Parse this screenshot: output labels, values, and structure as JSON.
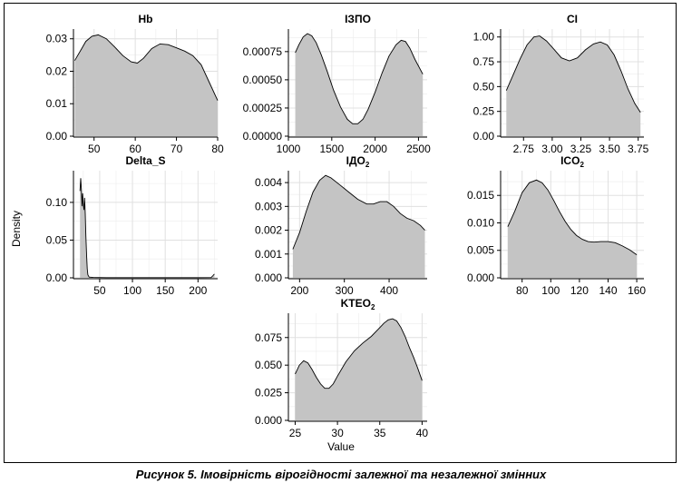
{
  "caption": "Рисунок 5.  Імовірність вірогідності залежної та незалежної змінних",
  "axis_labels": {
    "y": "Density",
    "x": "Value"
  },
  "colors": {
    "fill": "#c4c4c4",
    "grid": "#e0e0e0",
    "line": "#000000"
  },
  "chart_data": [
    {
      "type": "area",
      "title": "Hb",
      "title_sub": "",
      "xlim": [
        45,
        80
      ],
      "ylim": [
        0,
        0.033
      ],
      "xticks": [
        50,
        60,
        70,
        80
      ],
      "xtick_labels": [
        "50",
        "60",
        "70",
        "80"
      ],
      "yticks": [
        0,
        0.01,
        0.02,
        0.03
      ],
      "ytick_labels": [
        "0.00",
        "0.01",
        "0.02",
        "0.03"
      ],
      "xminor": [
        45,
        55,
        65,
        75
      ],
      "yminor": [
        0.005,
        0.015,
        0.025
      ],
      "x": [
        45.3,
        47,
        48,
        49.5,
        51,
        53,
        55,
        57,
        59,
        60.5,
        62,
        64,
        66,
        68,
        70,
        72,
        74,
        76,
        78,
        80
      ],
      "y": [
        0.0233,
        0.027,
        0.0292,
        0.0308,
        0.0312,
        0.03,
        0.0275,
        0.0248,
        0.0229,
        0.0225,
        0.024,
        0.027,
        0.0284,
        0.0282,
        0.0272,
        0.0262,
        0.0248,
        0.022,
        0.0165,
        0.011
      ]
    },
    {
      "type": "area",
      "title": "IЗПО",
      "title_sub": "",
      "xlim": [
        1000,
        2600
      ],
      "ylim": [
        0,
        0.00095
      ],
      "xticks": [
        1000,
        1500,
        2000,
        2500
      ],
      "xtick_labels": [
        "1000",
        "1500",
        "2000",
        "2500"
      ],
      "yticks": [
        0,
        0.00025,
        0.0005,
        0.00075
      ],
      "ytick_labels": [
        "0.00000",
        "0.00025",
        "0.00050",
        "0.00075"
      ],
      "xminor": [
        1250,
        1750,
        2250
      ],
      "yminor": [
        0.000125,
        0.000375,
        0.000625,
        0.000875
      ],
      "x": [
        1080,
        1120,
        1170,
        1220,
        1270,
        1320,
        1380,
        1450,
        1520,
        1600,
        1680,
        1740,
        1800,
        1860,
        1920,
        2000,
        2080,
        2160,
        2240,
        2300,
        2350,
        2400,
        2460,
        2550
      ],
      "y": [
        0.00074,
        0.00081,
        0.00088,
        0.00091,
        0.00089,
        0.00083,
        0.00072,
        0.00057,
        0.00041,
        0.00026,
        0.00015,
        0.00011,
        0.00011,
        0.00015,
        0.00024,
        0.00039,
        0.00056,
        0.00071,
        0.00081,
        0.00085,
        0.00084,
        0.00078,
        0.00068,
        0.00055
      ]
    },
    {
      "type": "area",
      "title": "CI",
      "title_sub": "",
      "xlim": [
        2.55,
        3.8
      ],
      "ylim": [
        0,
        1.08
      ],
      "xticks": [
        2.75,
        3.0,
        3.25,
        3.5,
        3.75
      ],
      "xtick_labels": [
        "2.75",
        "3.00",
        "3.25",
        "3.50",
        "3.75"
      ],
      "yticks": [
        0,
        0.25,
        0.5,
        0.75,
        1.0
      ],
      "ytick_labels": [
        "0.00",
        "0.25",
        "0.50",
        "0.75",
        "1.00"
      ],
      "xminor": [
        2.625,
        2.875,
        3.125,
        3.375,
        3.625
      ],
      "yminor": [
        0.125,
        0.375,
        0.625,
        0.875
      ],
      "x": [
        2.6,
        2.66,
        2.72,
        2.78,
        2.84,
        2.89,
        2.95,
        3.02,
        3.08,
        3.15,
        3.22,
        3.29,
        3.36,
        3.42,
        3.48,
        3.54,
        3.6,
        3.66,
        3.72,
        3.77
      ],
      "y": [
        0.46,
        0.62,
        0.78,
        0.92,
        1.0,
        1.01,
        0.96,
        0.87,
        0.79,
        0.76,
        0.79,
        0.87,
        0.93,
        0.95,
        0.92,
        0.82,
        0.66,
        0.48,
        0.33,
        0.24
      ]
    },
    {
      "type": "area",
      "title": "Delta_S",
      "title_sub": "",
      "xlim": [
        10,
        230
      ],
      "ylim": [
        0,
        0.142
      ],
      "xticks": [
        50,
        100,
        150,
        200
      ],
      "xtick_labels": [
        "50",
        "100",
        "150",
        "200"
      ],
      "yticks": [
        0,
        0.05,
        0.1
      ],
      "ytick_labels": [
        "0.00",
        "0.05",
        "0.10"
      ],
      "xminor": [
        25,
        75,
        125,
        175,
        225
      ],
      "yminor": [
        0.025,
        0.075,
        0.125
      ],
      "x": [
        20,
        21,
        22,
        23,
        24,
        25,
        26,
        27,
        28,
        29,
        30,
        31,
        32,
        34,
        40,
        60,
        100,
        150,
        200,
        220,
        223,
        225
      ],
      "y": [
        0.115,
        0.132,
        0.118,
        0.095,
        0.112,
        0.098,
        0.09,
        0.106,
        0.085,
        0.055,
        0.03,
        0.012,
        0.004,
        0.001,
        0.0005,
        0.0003,
        0.0003,
        0.0003,
        0.0003,
        0.0004,
        0.003,
        0.005
      ]
    },
    {
      "type": "area",
      "title": "IДO",
      "title_sub": "2",
      "xlim": [
        175,
        485
      ],
      "ylim": [
        0,
        0.0045
      ],
      "xticks": [
        200,
        300,
        400
      ],
      "xtick_labels": [
        "200",
        "300",
        "400"
      ],
      "yticks": [
        0,
        0.001,
        0.002,
        0.003,
        0.004
      ],
      "ytick_labels": [
        "0.000",
        "0.001",
        "0.002",
        "0.003",
        "0.004"
      ],
      "xminor": [
        250,
        350,
        450
      ],
      "yminor": [
        0.0005,
        0.0015,
        0.0025,
        0.0035
      ],
      "x": [
        185,
        200,
        215,
        230,
        245,
        258,
        270,
        290,
        310,
        330,
        350,
        365,
        380,
        395,
        410,
        425,
        440,
        455,
        470,
        480
      ],
      "y": [
        0.0012,
        0.0019,
        0.0028,
        0.0036,
        0.0041,
        0.0043,
        0.0042,
        0.0039,
        0.0036,
        0.0033,
        0.0031,
        0.0031,
        0.0032,
        0.0032,
        0.003,
        0.0027,
        0.0025,
        0.0024,
        0.0022,
        0.002
      ]
    },
    {
      "type": "area",
      "title": "ICO",
      "title_sub": "2",
      "xlim": [
        65,
        165
      ],
      "ylim": [
        0,
        0.0195
      ],
      "xticks": [
        80,
        100,
        120,
        140,
        160
      ],
      "xtick_labels": [
        "80",
        "100",
        "120",
        "140",
        "160"
      ],
      "yticks": [
        0,
        0.005,
        0.01,
        0.015
      ],
      "ytick_labels": [
        "0.000",
        "0.005",
        "0.010",
        "0.015"
      ],
      "xminor": [
        70,
        90,
        110,
        130,
        150
      ],
      "yminor": [
        0.0025,
        0.0075,
        0.0125,
        0.0175
      ],
      "x": [
        70,
        75,
        80,
        85,
        90,
        94,
        98,
        102,
        106,
        110,
        114,
        118,
        122,
        126,
        130,
        135,
        140,
        145,
        150,
        155,
        160
      ],
      "y": [
        0.0093,
        0.0122,
        0.0155,
        0.0173,
        0.0178,
        0.0173,
        0.016,
        0.0141,
        0.0121,
        0.0103,
        0.0088,
        0.0077,
        0.007,
        0.0066,
        0.0065,
        0.0066,
        0.0066,
        0.0064,
        0.0058,
        0.0051,
        0.0042
      ]
    },
    {
      "type": "area",
      "title": "KTEO",
      "title_sub": "2",
      "xlim": [
        24.2,
        40.6
      ],
      "ylim": [
        0,
        0.097
      ],
      "xticks": [
        25,
        30,
        35,
        40
      ],
      "xtick_labels": [
        "25",
        "30",
        "35",
        "40"
      ],
      "yticks": [
        0,
        0.025,
        0.05,
        0.075
      ],
      "ytick_labels": [
        "0.000",
        "0.025",
        "0.050",
        "0.075"
      ],
      "xminor": [
        27.5,
        32.5,
        37.5
      ],
      "yminor": [
        0.0125,
        0.0375,
        0.0625,
        0.0875
      ],
      "x": [
        25,
        25.5,
        26,
        26.5,
        27,
        27.5,
        28,
        28.5,
        29,
        29.5,
        30,
        31,
        32,
        33,
        34,
        35,
        35.5,
        36,
        36.5,
        37,
        37.5,
        38,
        38.5,
        39,
        39.5,
        40
      ],
      "y": [
        0.042,
        0.05,
        0.054,
        0.052,
        0.046,
        0.039,
        0.033,
        0.029,
        0.029,
        0.033,
        0.04,
        0.053,
        0.063,
        0.07,
        0.076,
        0.084,
        0.088,
        0.091,
        0.092,
        0.09,
        0.084,
        0.076,
        0.066,
        0.057,
        0.047,
        0.036
      ]
    }
  ]
}
